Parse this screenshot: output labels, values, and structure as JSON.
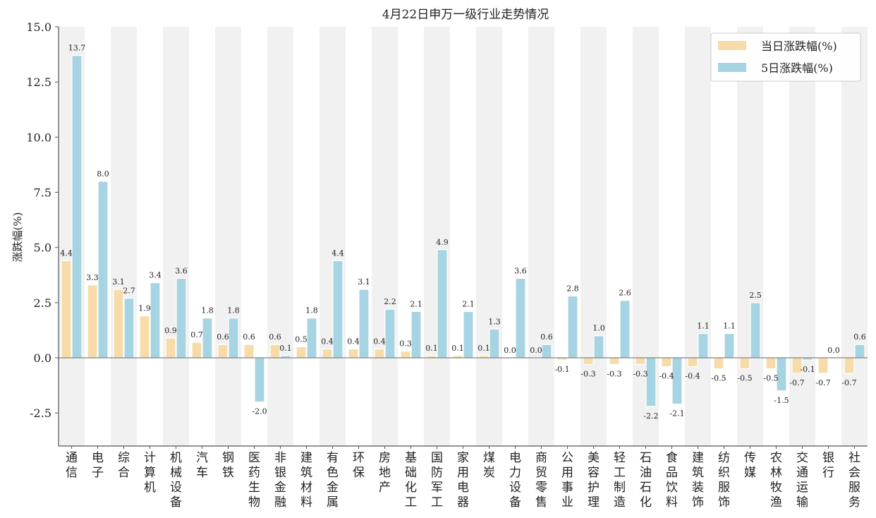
{
  "chart_data": {
    "type": "bar",
    "title": "4月22日申万一级行业走势情况",
    "ylabel": "涨跌幅(%)",
    "xlabel": "",
    "ylim": [
      -4.0,
      15.0
    ],
    "yticks": [
      "15.0",
      "12.5",
      "10.0",
      "7.5",
      "5.0",
      "2.5",
      "0.0",
      "-2.5"
    ],
    "ytick_values": [
      15.0,
      12.5,
      10.0,
      7.5,
      5.0,
      2.5,
      0.0,
      -2.5
    ],
    "grid": "vertical-bands",
    "legend_position": "top-right",
    "categories": [
      "通信",
      "电子",
      "综合",
      "计算机",
      "机械设备",
      "汽车",
      "钢铁",
      "医药生物",
      "非银金融",
      "建筑材料",
      "有色金属",
      "环保",
      "房地产",
      "基础化工",
      "国防军工",
      "家用电器",
      "煤炭",
      "电力设备",
      "商贸零售",
      "公用事业",
      "美容护理",
      "轻工制造",
      "石油石化",
      "食品饮料",
      "建筑装饰",
      "纺织服饰",
      "传媒",
      "农林牧渔",
      "交通运输",
      "银行",
      "社会服务"
    ],
    "series": [
      {
        "name": "当日涨跌幅(%)",
        "color": "#f7dcaa",
        "values": [
          4.4,
          3.3,
          3.1,
          1.9,
          0.9,
          0.7,
          0.6,
          0.6,
          0.6,
          0.5,
          0.4,
          0.4,
          0.4,
          0.3,
          0.1,
          0.1,
          0.1,
          0.0,
          0.0,
          -0.1,
          -0.3,
          -0.3,
          -0.3,
          -0.4,
          -0.4,
          -0.5,
          -0.5,
          -0.5,
          -0.7,
          -0.7,
          -0.7
        ],
        "labels": [
          "4.4",
          "3.3",
          "3.1",
          "1.9",
          "0.9",
          "0.7",
          "0.6",
          "0.6",
          "0.6",
          "0.5",
          "0.4",
          "0.4",
          "0.4",
          "0.3",
          "0.1",
          "0.1",
          "0.1",
          "0.0",
          "0.0",
          "-0.1",
          "-0.3",
          "-0.3",
          "-0.3",
          "-0.4",
          "-0.4",
          "-0.5",
          "-0.5",
          "-0.5",
          "-0.7",
          "-0.7",
          "-0.7"
        ]
      },
      {
        "name": "5日涨跌幅(%)",
        "color": "#a6d4e2",
        "values": [
          13.7,
          8.0,
          2.7,
          3.4,
          3.6,
          1.8,
          1.8,
          -2.0,
          0.1,
          1.8,
          4.4,
          3.1,
          2.2,
          2.1,
          4.9,
          2.1,
          1.3,
          3.6,
          0.6,
          2.8,
          1.0,
          2.6,
          -2.2,
          -2.1,
          1.1,
          1.1,
          2.5,
          -1.5,
          -0.1,
          0.0,
          0.6
        ],
        "labels": [
          "13.7",
          "8.0",
          "2.7",
          "3.4",
          "3.6",
          "1.8",
          "1.8",
          "-2.0",
          "0.1",
          "1.8",
          "4.4",
          "3.1",
          "2.2",
          "2.1",
          "4.9",
          "2.1",
          "1.3",
          "3.6",
          "0.6",
          "2.8",
          "1.0",
          "2.6",
          "-2.2",
          "-2.1",
          "1.1",
          "1.1",
          "2.5",
          "-1.5",
          "-0.1",
          "0.0",
          "0.6"
        ]
      }
    ]
  },
  "colors": {
    "band": "#f1f1f1",
    "zero_line": "#666666",
    "axis": "#555555",
    "bar_edge": "#ffffff"
  }
}
